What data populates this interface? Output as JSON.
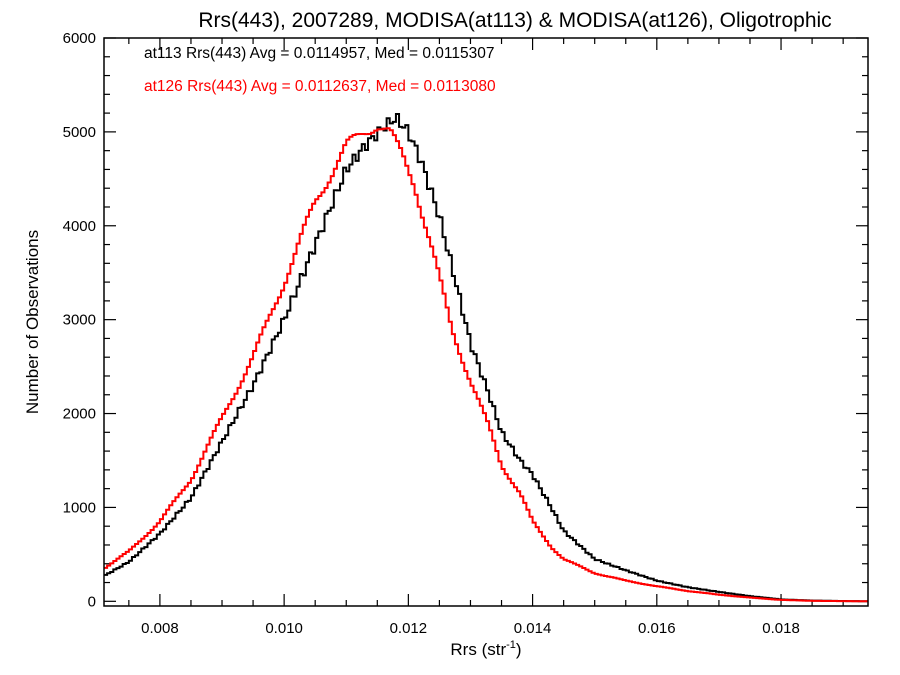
{
  "chart_data": {
    "type": "line",
    "title": "Rrs(443), 2007289, MODISA(at113) & MODISA(at126), Oligotrophic",
    "xlabel": "Rrs (str",
    "xlabel_sup": "-1",
    "xlabel_close": ")",
    "ylabel": "Number of Observations",
    "xlim": [
      0.0071,
      0.0194
    ],
    "ylim": [
      -50,
      6000
    ],
    "x_ticks": [
      "0.008",
      "0.010",
      "0.012",
      "0.014",
      "0.016",
      "0.018"
    ],
    "x_tick_values": [
      0.008,
      0.01,
      0.012,
      0.014,
      0.016,
      0.018
    ],
    "y_ticks": [
      "0",
      "1000",
      "2000",
      "3000",
      "4000",
      "5000",
      "6000"
    ],
    "y_tick_values": [
      0,
      1000,
      2000,
      3000,
      4000,
      5000,
      6000
    ],
    "grid": false,
    "step_style": "histogram-step",
    "annotations": [
      {
        "text": "at113 Rrs(443) Avg = 0.0114957, Med = 0.0115307",
        "color": "#000000"
      },
      {
        "text": "at126 Rrs(443) Avg = 0.0112637, Med = 0.0113080",
        "color": "#ff0000"
      }
    ],
    "series": [
      {
        "color": "#000000",
        "x": [
          0.0071,
          0.0075,
          0.008,
          0.0085,
          0.009,
          0.0095,
          0.01,
          0.0105,
          0.011,
          0.0113,
          0.0116,
          0.0118,
          0.012,
          0.0122,
          0.0125,
          0.0128,
          0.013,
          0.0133,
          0.0135,
          0.0138,
          0.014,
          0.0143,
          0.0145,
          0.015,
          0.0155,
          0.016,
          0.0165,
          0.017,
          0.0175,
          0.018,
          0.0185,
          0.019,
          0.0194
        ],
        "y": [
          270,
          420,
          720,
          1100,
          1700,
          2300,
          3000,
          3800,
          4600,
          4850,
          5050,
          5150,
          5000,
          4700,
          4100,
          3300,
          2750,
          2200,
          1800,
          1500,
          1350,
          1000,
          750,
          450,
          330,
          220,
          150,
          100,
          55,
          20,
          8,
          3,
          0
        ]
      },
      {
        "color": "#ff0000",
        "x": [
          0.0071,
          0.0075,
          0.008,
          0.0085,
          0.009,
          0.0095,
          0.01,
          0.0105,
          0.011,
          0.0113,
          0.0115,
          0.0117,
          0.0119,
          0.0121,
          0.0124,
          0.0127,
          0.013,
          0.0133,
          0.0135,
          0.0138,
          0.014,
          0.0143,
          0.0145,
          0.015,
          0.0155,
          0.016,
          0.0165,
          0.017,
          0.0175,
          0.018,
          0.0185,
          0.019,
          0.0194
        ],
        "y": [
          350,
          530,
          850,
          1300,
          1950,
          2600,
          3400,
          4250,
          4850,
          5000,
          5080,
          5000,
          4750,
          4450,
          3700,
          2900,
          2350,
          1850,
          1450,
          1150,
          850,
          580,
          450,
          300,
          220,
          160,
          110,
          70,
          40,
          15,
          5,
          2,
          0
        ]
      }
    ]
  }
}
